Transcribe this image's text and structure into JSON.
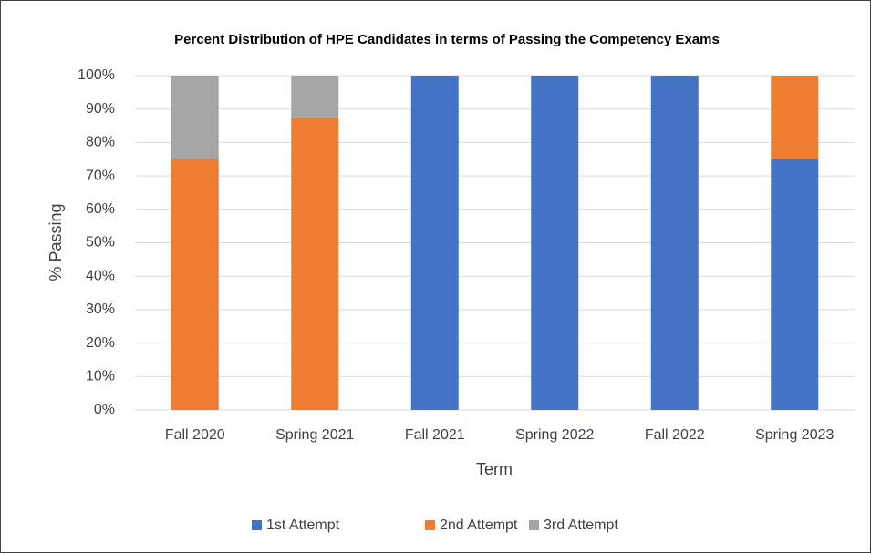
{
  "chart_data": {
    "type": "stacked_bar",
    "title": "Percent Distribution of HPE Candidates in terms of Passing the Competency Exams",
    "x_label": "Term",
    "y_label": "% Passing",
    "categories": [
      "Fall 2020",
      "Spring 2021",
      "Fall 2021",
      "Spring 2022",
      "Fall 2022",
      "Spring 2023"
    ],
    "series": [
      {
        "name": "1st Attempt",
        "color": "#4472c4",
        "values": [
          0,
          0,
          100,
          100,
          100,
          75
        ]
      },
      {
        "name": "2nd Attempt",
        "color": "#ed7d31",
        "values": [
          75,
          87.5,
          0,
          0,
          0,
          25
        ]
      },
      {
        "name": "3rd Attempt",
        "color": "#a5a5a5",
        "values": [
          25,
          12.5,
          0,
          0,
          0,
          0
        ]
      }
    ],
    "ylim": [
      0,
      100
    ],
    "yticks": [
      {
        "value": 0,
        "label": "0%"
      },
      {
        "value": 10,
        "label": "10%"
      },
      {
        "value": 20,
        "label": "20%"
      },
      {
        "value": 30,
        "label": "30%"
      },
      {
        "value": 40,
        "label": "40%"
      },
      {
        "value": 50,
        "label": "50%"
      },
      {
        "value": 60,
        "label": "60%"
      },
      {
        "value": 70,
        "label": "70%"
      },
      {
        "value": 80,
        "label": "80%"
      },
      {
        "value": 90,
        "label": "90%"
      },
      {
        "value": 100,
        "label": "100%"
      }
    ],
    "grid": true,
    "legend": "bottom"
  }
}
